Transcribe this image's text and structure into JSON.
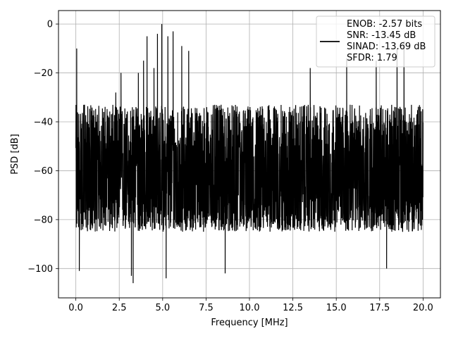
{
  "chart_data": {
    "type": "line",
    "title": "",
    "xlabel": "Frequency [MHz]",
    "ylabel": "PSD [dB]",
    "xlim": [
      -1.0,
      21.0
    ],
    "ylim": [
      -112,
      5.5
    ],
    "xticks": [
      0.0,
      2.5,
      5.0,
      7.5,
      10.0,
      12.5,
      15.0,
      17.5,
      20.0
    ],
    "xtick_labels": [
      "0.0",
      "2.5",
      "5.0",
      "7.5",
      "10.0",
      "12.5",
      "15.0",
      "17.5",
      "20.0"
    ],
    "yticks": [
      0,
      -20,
      -40,
      -60,
      -80,
      -100
    ],
    "ytick_labels": [
      "0",
      "−20",
      "−40",
      "−60",
      "−80",
      "−100"
    ],
    "grid": true,
    "legend_position": "top-right",
    "legend": {
      "line_color": "#000000",
      "lines": [
        "ENOB: -2.57 bits",
        "SNR: -13.45 dB",
        "SINAD: -13.69 dB",
        "SFDR: 1.79"
      ]
    },
    "series": [
      {
        "color": "#000000",
        "x_range": [
          0.0,
          20.0
        ],
        "noise_floor_db": [
          -85,
          -33
        ],
        "noise_floor_median_db": -60,
        "spurs": [
          {
            "x": 0.05,
            "y": -10
          },
          {
            "x": 0.2,
            "y": -101
          },
          {
            "x": 0.5,
            "y": -33
          },
          {
            "x": 1.2,
            "y": -40
          },
          {
            "x": 2.3,
            "y": -28
          },
          {
            "x": 2.6,
            "y": -20
          },
          {
            "x": 3.2,
            "y": -103
          },
          {
            "x": 3.3,
            "y": -106
          },
          {
            "x": 3.6,
            "y": -20
          },
          {
            "x": 3.9,
            "y": -15
          },
          {
            "x": 4.1,
            "y": -5
          },
          {
            "x": 4.5,
            "y": -18
          },
          {
            "x": 4.7,
            "y": -4
          },
          {
            "x": 4.95,
            "y": 0
          },
          {
            "x": 5.2,
            "y": -104
          },
          {
            "x": 5.3,
            "y": -5
          },
          {
            "x": 5.6,
            "y": -3
          },
          {
            "x": 6.1,
            "y": -9
          },
          {
            "x": 6.5,
            "y": -11
          },
          {
            "x": 8.6,
            "y": -102
          },
          {
            "x": 10.6,
            "y": -40
          },
          {
            "x": 13.5,
            "y": -18
          },
          {
            "x": 15.6,
            "y": -14
          },
          {
            "x": 17.3,
            "y": -15
          },
          {
            "x": 17.9,
            "y": -100
          },
          {
            "x": 18.5,
            "y": -10
          },
          {
            "x": 18.9,
            "y": -7
          }
        ]
      }
    ]
  }
}
